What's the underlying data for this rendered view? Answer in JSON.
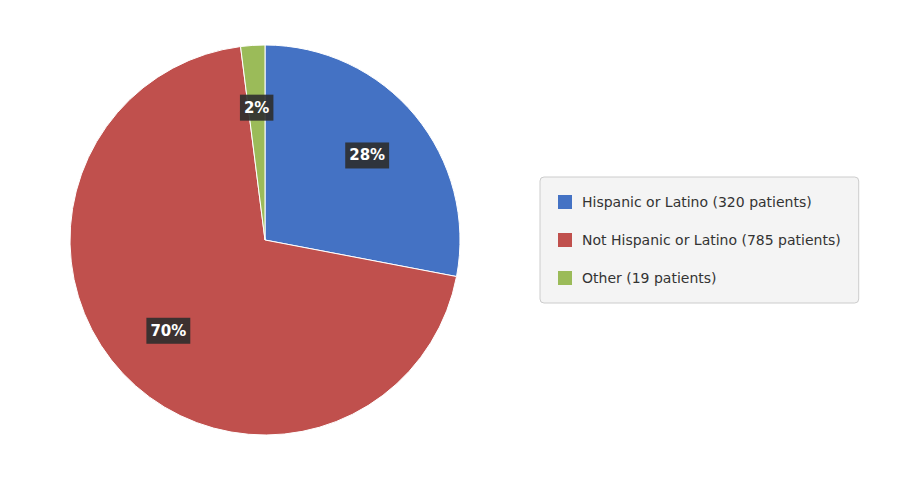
{
  "chart_data": {
    "type": "pie",
    "categories": [
      "Hispanic or Latino (320 patients)",
      "Not Hispanic or Latino (785 patients)",
      "Other (19 patients)"
    ],
    "values": [
      28,
      70,
      2
    ],
    "value_labels": [
      "28%",
      "70%",
      "2%"
    ],
    "colors": [
      "#4472C4",
      "#C0504D",
      "#9BBB59"
    ],
    "data_labels": true,
    "legend": "right"
  }
}
